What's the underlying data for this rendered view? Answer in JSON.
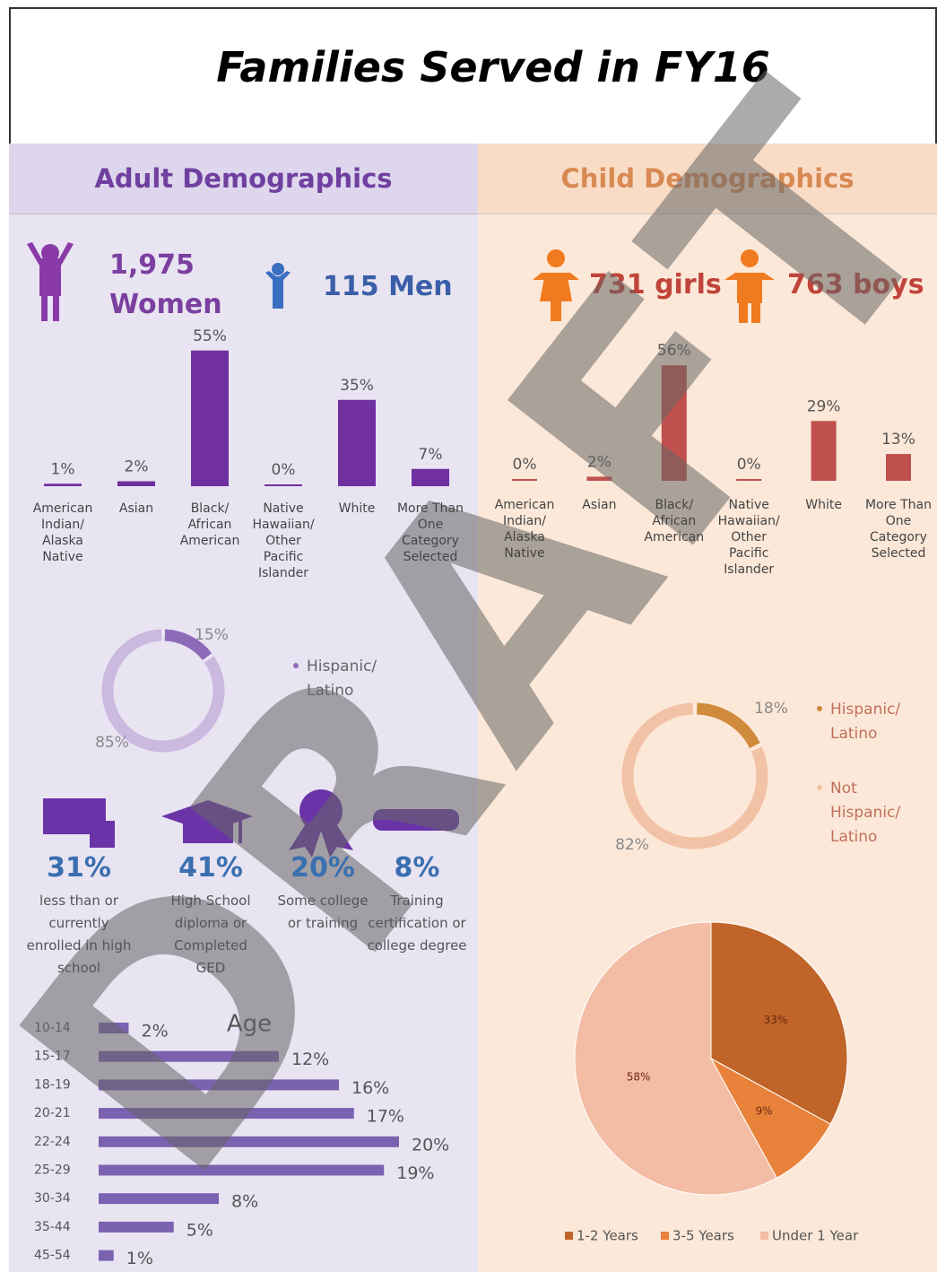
{
  "title": "Families Served in FY16",
  "watermark": "DRAFT",
  "adult": {
    "heading": "Adult Demographics",
    "women": {
      "count": "1,975",
      "label": "Women"
    },
    "men": {
      "count": "115",
      "label": "Men"
    },
    "education": [
      {
        "percent": "31%",
        "text": "less than or currently enrolled in high school"
      },
      {
        "percent": "41%",
        "text": "High School diploma or Completed GED"
      },
      {
        "percent": "20%",
        "text": "Some college or training"
      },
      {
        "percent": "8%",
        "text": "Training certification or college degree"
      }
    ]
  },
  "child": {
    "heading": "Child Demographics",
    "girls": "731 girls",
    "boys": "763 boys"
  },
  "chart_data": [
    {
      "type": "bar",
      "color": "#7030a0",
      "categories": [
        "American Indian/ Alaska Native",
        "Asian",
        "Black/ African American",
        "Native Hawaiian/ Other Pacific Islander",
        "White",
        "More Than One Category Selected"
      ],
      "values": [
        1,
        2,
        55,
        0,
        35,
        7
      ],
      "value_labels": [
        "1%",
        "2%",
        "55%",
        "0%",
        "35%",
        "7%"
      ]
    },
    {
      "type": "bar",
      "color": "#c0504d",
      "categories": [
        "American Indian/ Alaska Native",
        "Asian",
        "Black/ African American",
        "Native Hawaiian/ Other Pacific Islander",
        "White",
        "More Than One Category Selected"
      ],
      "values": [
        0,
        2,
        56,
        0,
        29,
        13
      ],
      "value_labels": [
        "0%",
        "2%",
        "56%",
        "0%",
        "29%",
        "13%"
      ]
    },
    {
      "type": "donut",
      "categories": [
        "Hispanic/ Latino",
        null
      ],
      "values": [
        15,
        85
      ],
      "value_labels": [
        "15%",
        "85%"
      ],
      "colors": [
        "#8e6bb8",
        "#cbb9e0"
      ]
    },
    {
      "type": "donut",
      "categories": [
        "Hispanic/ Latino",
        "Not Hispanic/ Latino"
      ],
      "values": [
        18,
        82
      ],
      "value_labels": [
        "18%",
        "82%"
      ],
      "colors": [
        "#d08a3c",
        "#f2c2a6"
      ]
    },
    {
      "type": "hbar",
      "title": "Age",
      "color": "#7a62b0",
      "categories": [
        "10-14",
        "15-17",
        "18-19",
        "20-21",
        "22-24",
        "25-29",
        "30-34",
        "35-44",
        "45-54"
      ],
      "values": [
        2,
        12,
        16,
        17,
        20,
        19,
        8,
        5,
        1
      ],
      "value_labels": [
        "2%",
        "12%",
        "16%",
        "17%",
        "20%",
        "19%",
        "8%",
        "5%",
        "1%"
      ]
    },
    {
      "type": "pie",
      "categories": [
        "1-2 Years",
        "3-5 Years",
        "Under 1 Year"
      ],
      "values": [
        33,
        9,
        58
      ],
      "value_labels": [
        "33%",
        "9%",
        "58%"
      ],
      "colors": [
        "#c0642a",
        "#e8823a",
        "#f3bca4"
      ]
    }
  ]
}
